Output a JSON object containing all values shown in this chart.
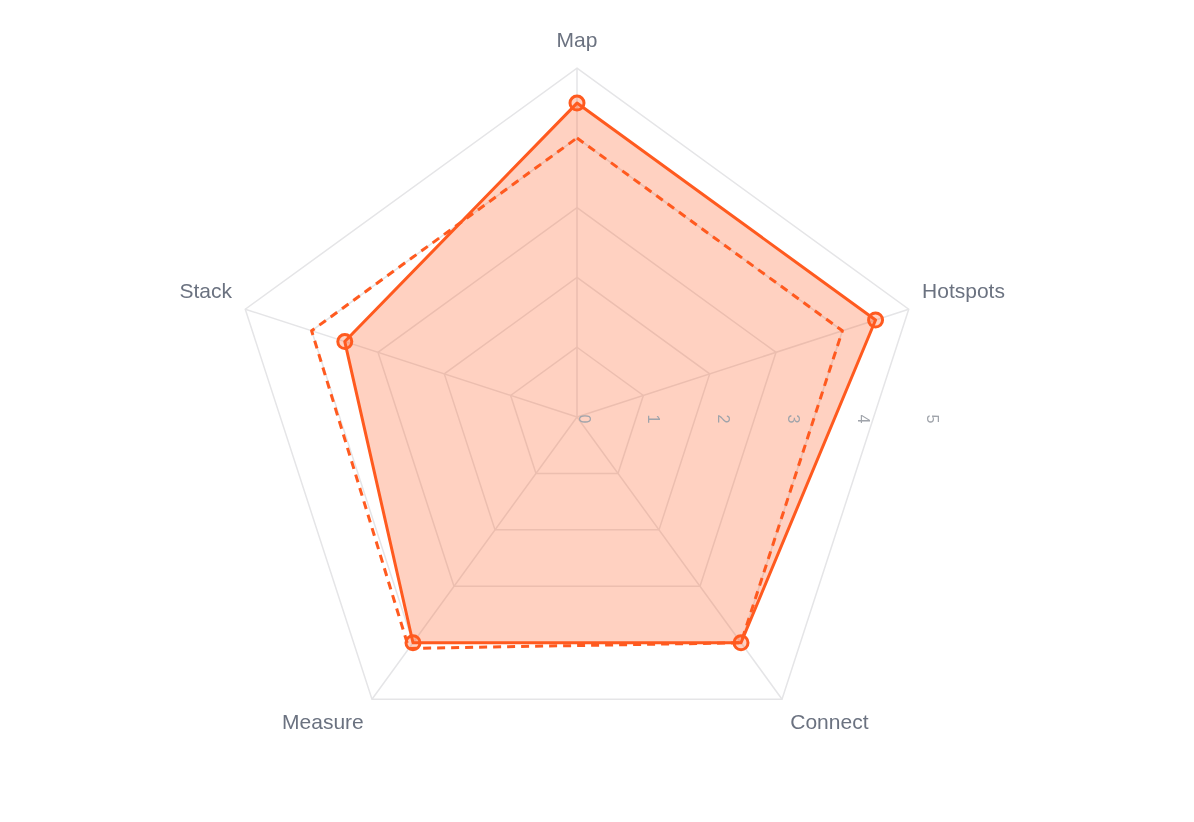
{
  "chart_data": {
    "type": "radar",
    "categories": [
      "Map",
      "Hotspots",
      "Connect",
      "Measure",
      "Stack"
    ],
    "ylim": [
      0,
      5
    ],
    "yticks": [
      0,
      1,
      2,
      3,
      4,
      5
    ],
    "grid": true,
    "legend": false,
    "series": [
      {
        "color": "#ff5a1f",
        "values": [
          4.5,
          4.5,
          4,
          4,
          3.5
        ],
        "marker": "circle",
        "line_style": "solid"
      },
      {
        "color": "#ff5a1f",
        "values": [
          4,
          4,
          4,
          4.1,
          4
        ],
        "marker": "none",
        "line_style": "dashed"
      }
    ]
  }
}
